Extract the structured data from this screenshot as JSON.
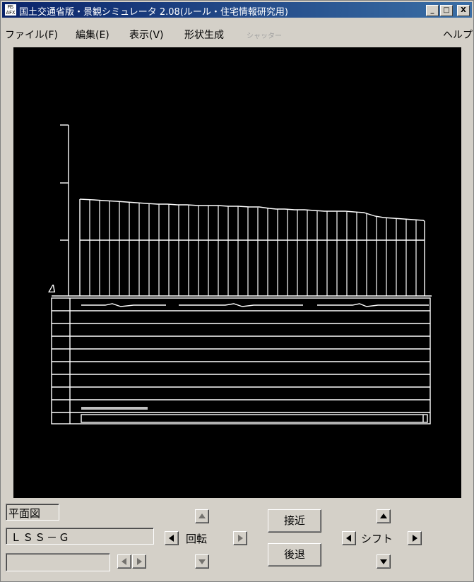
{
  "window": {
    "icon_text_top": "MS",
    "icon_text_bottom": "AFX",
    "title": "国土交通省版・景観シミュレータ 2.08(ルール・住宅情報研究用)",
    "minimize_glyph": "_",
    "maximize_glyph": "□",
    "close_glyph": "X"
  },
  "menu": {
    "file": "ファイル(F)",
    "edit": "編集(E)",
    "view": "表示(V)",
    "shape": "形状生成",
    "shutter": "シャッター",
    "help": "ヘルプ"
  },
  "view_canvas": {
    "background": "#000000",
    "line_color": "#ffffff",
    "marker_text": "Δ"
  },
  "controls": {
    "view_mode": "平面図",
    "model_name": "ＬＳＳ－Ｇ",
    "extra_field": "",
    "rotate_label": "回転",
    "approach_label": "接近",
    "retreat_label": "後退",
    "shift_label": "シフト"
  },
  "icons": {
    "up": "arrow-up-icon",
    "down": "arrow-down-icon",
    "left": "arrow-left-icon",
    "right": "arrow-right-icon"
  }
}
